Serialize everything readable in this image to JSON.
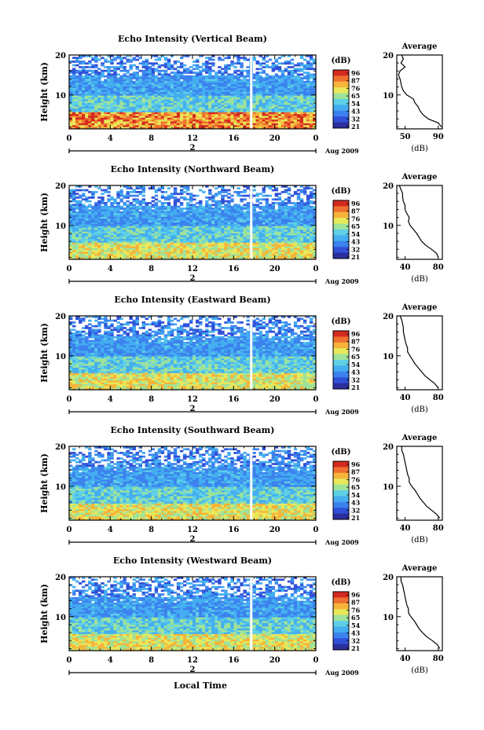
{
  "colormap": [
    "#2b2f9e",
    "#3050d8",
    "#3c82ee",
    "#44aef0",
    "#5fd0e6",
    "#9ee39a",
    "#e8e85a",
    "#f6b43a",
    "#ef7030",
    "#d42a20"
  ],
  "colorbar": {
    "unit": "(dB)",
    "ticks": [
      "96",
      "87",
      "76",
      "65",
      "54",
      "43",
      "32",
      "21"
    ]
  },
  "xticks": [
    "0",
    "4",
    "8",
    "12",
    "16",
    "20",
    "0"
  ],
  "yticks": [
    "20",
    "10"
  ],
  "date_marker": "2",
  "date_label": "Aug 2009",
  "ylabel": "Height (km)",
  "xlabel": "Local Time",
  "avg_title": "Average",
  "avg_xlabel": "(dB)",
  "chart_data": [
    {
      "type": "heatmap",
      "title": "Echo Intensity (Vertical Beam)",
      "x_range": [
        0,
        24
      ],
      "y_range": [
        1.5,
        20
      ],
      "clim": [
        21,
        96
      ],
      "avg_profile": {
        "xticks": [
          "50",
          "90"
        ],
        "xlim": [
          40,
          95
        ],
        "height": [
          2,
          3,
          4,
          5,
          6,
          7,
          8,
          9,
          10,
          11,
          12,
          13,
          14,
          15,
          16,
          17,
          18,
          19,
          20
        ],
        "value": [
          94,
          90,
          78,
          72,
          68,
          66,
          62,
          60,
          52,
          48,
          46,
          45,
          44,
          42,
          44,
          50,
          45,
          48,
          46
        ]
      }
    },
    {
      "type": "heatmap",
      "title": "Echo Intensity (Northward Beam)",
      "x_range": [
        0,
        24
      ],
      "y_range": [
        1.5,
        20
      ],
      "clim": [
        21,
        96
      ],
      "avg_profile": {
        "xticks": [
          "40",
          "80"
        ],
        "xlim": [
          30,
          85
        ],
        "height": [
          2,
          3,
          4,
          5,
          6,
          7,
          8,
          9,
          10,
          11,
          12,
          13,
          14,
          15,
          16,
          17,
          18,
          19,
          20
        ],
        "value": [
          80,
          78,
          72,
          65,
          60,
          57,
          54,
          50,
          46,
          44,
          45,
          42,
          40,
          40,
          38,
          37,
          37,
          35,
          33
        ]
      }
    },
    {
      "type": "heatmap",
      "title": "Echo Intensity (Eastward Beam)",
      "x_range": [
        0,
        24
      ],
      "y_range": [
        1.5,
        20
      ],
      "clim": [
        21,
        96
      ],
      "avg_profile": {
        "xticks": [
          "40",
          "80"
        ],
        "xlim": [
          30,
          85
        ],
        "height": [
          2,
          3,
          4,
          5,
          6,
          7,
          8,
          9,
          10,
          11,
          12,
          13,
          14,
          15,
          16,
          17,
          18,
          19,
          20
        ],
        "value": [
          80,
          76,
          70,
          64,
          60,
          56,
          52,
          49,
          46,
          43,
          43,
          41,
          40,
          39,
          38,
          38,
          37,
          36,
          34
        ]
      }
    },
    {
      "type": "heatmap",
      "title": "Echo Intensity (Southward Beam)",
      "x_range": [
        0,
        24
      ],
      "y_range": [
        1.5,
        20
      ],
      "clim": [
        21,
        96
      ],
      "avg_profile": {
        "xticks": [
          "40",
          "80"
        ],
        "xlim": [
          30,
          85
        ],
        "height": [
          2,
          3,
          4,
          5,
          6,
          7,
          8,
          9,
          10,
          11,
          12,
          13,
          14,
          15,
          16,
          17,
          18,
          19,
          20
        ],
        "value": [
          82,
          78,
          72,
          66,
          62,
          58,
          55,
          52,
          48,
          45,
          45,
          43,
          42,
          41,
          40,
          39,
          38,
          36,
          36
        ]
      }
    },
    {
      "type": "heatmap",
      "title": "Echo Intensity (Westward Beam)",
      "x_range": [
        0,
        24
      ],
      "y_range": [
        1.5,
        20
      ],
      "clim": [
        21,
        96
      ],
      "avg_profile": {
        "xticks": [
          "40",
          "80"
        ],
        "xlim": [
          30,
          85
        ],
        "height": [
          2,
          3,
          4,
          5,
          6,
          7,
          8,
          9,
          10,
          11,
          12,
          13,
          14,
          15,
          16,
          17,
          18,
          19,
          20
        ],
        "value": [
          82,
          79,
          73,
          66,
          61,
          57,
          54,
          51,
          47,
          44,
          44,
          42,
          41,
          40,
          39,
          38,
          37,
          35,
          35
        ]
      }
    }
  ]
}
